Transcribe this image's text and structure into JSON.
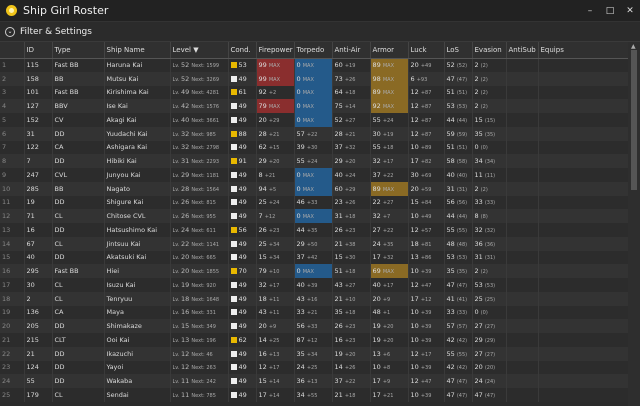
{
  "window": {
    "title": "Ship Girl Roster",
    "min": "–",
    "max": "□",
    "close": "✕"
  },
  "filter": {
    "label": "Filter & Settings"
  },
  "columns": [
    "ID",
    "Type",
    "Ship Name",
    "Level ▼",
    "Cond.",
    "Firepower",
    "Torpedo",
    "Anti-Air",
    "Armor",
    "Luck",
    "LoS",
    "Evasion",
    "AntiSub",
    "Equips"
  ],
  "rows": [
    {
      "n": "1",
      "id": "115",
      "type": "Fast BB",
      "name": "Haruna Kai",
      "lv": "52",
      "next": "1599",
      "cond": "53",
      "cw": false,
      "fp": "99",
      "fpm": "MAX",
      "fpc": "red",
      "tp": "0",
      "tpm": "MAX",
      "tpc": "blue",
      "aa": "60",
      "aam": "+19",
      "ar": "89",
      "arm": "MAX",
      "arc": "gold",
      "lk": "20",
      "lkm": "+49",
      "los": "52",
      "losm": "(52)",
      "ev": "2",
      "evm": "(2)"
    },
    {
      "n": "2",
      "id": "158",
      "type": "BB",
      "name": "Mutsu Kai",
      "lv": "52",
      "next": "3269",
      "cond": "49",
      "cw": true,
      "fp": "99",
      "fpm": "MAX",
      "fpc": "red",
      "tp": "0",
      "tpm": "MAX",
      "tpc": "blue",
      "aa": "73",
      "aam": "+26",
      "ar": "98",
      "arm": "MAX",
      "arc": "gold",
      "lk": "6",
      "lkm": "+93",
      "los": "47",
      "losm": "(47)",
      "ev": "2",
      "evm": "(2)"
    },
    {
      "n": "3",
      "id": "101",
      "type": "Fast BB",
      "name": "Kirishima Kai",
      "lv": "49",
      "next": "4281",
      "cond": "61",
      "cw": false,
      "fp": "92",
      "fpm": "+2",
      "fpc": "",
      "tp": "0",
      "tpm": "MAX",
      "tpc": "blue",
      "aa": "64",
      "aam": "+18",
      "ar": "89",
      "arm": "MAX",
      "arc": "gold",
      "lk": "12",
      "lkm": "+87",
      "los": "51",
      "losm": "(51)",
      "ev": "2",
      "evm": "(2)"
    },
    {
      "n": "4",
      "id": "127",
      "type": "BBV",
      "name": "Ise Kai",
      "lv": "42",
      "next": "1576",
      "cond": "49",
      "cw": true,
      "fp": "79",
      "fpm": "MAX",
      "fpc": "red",
      "tp": "0",
      "tpm": "MAX",
      "tpc": "blue",
      "aa": "75",
      "aam": "+14",
      "ar": "92",
      "arm": "MAX",
      "arc": "gold",
      "lk": "12",
      "lkm": "+87",
      "los": "53",
      "losm": "(53)",
      "ev": "2",
      "evm": "(2)"
    },
    {
      "n": "5",
      "id": "152",
      "type": "CV",
      "name": "Akagi Kai",
      "lv": "40",
      "next": "3661",
      "cond": "49",
      "cw": true,
      "fp": "20",
      "fpm": "+29",
      "fpc": "",
      "tp": "0",
      "tpm": "MAX",
      "tpc": "blue",
      "aa": "52",
      "aam": "+27",
      "ar": "55",
      "arm": "+24",
      "arc": "",
      "lk": "12",
      "lkm": "+87",
      "los": "44",
      "losm": "(44)",
      "ev": "15",
      "evm": "(15)"
    },
    {
      "n": "6",
      "id": "31",
      "type": "DD",
      "name": "Yuudachi Kai",
      "lv": "32",
      "next": "985",
      "cond": "88",
      "cw": false,
      "fp": "28",
      "fpm": "+21",
      "fpc": "",
      "tp": "57",
      "tpm": "+22",
      "tpc": "",
      "aa": "28",
      "aam": "+21",
      "ar": "30",
      "arm": "+19",
      "lk": "12",
      "lkm": "+87",
      "los": "59",
      "losm": "(59)",
      "ev": "35",
      "evm": "(35)"
    },
    {
      "n": "7",
      "id": "122",
      "type": "CA",
      "name": "Ashigara Kai",
      "lv": "32",
      "next": "2798",
      "cond": "49",
      "cw": true,
      "fp": "62",
      "fpm": "+15",
      "fpc": "",
      "tp": "39",
      "tpm": "+30",
      "tpc": "",
      "aa": "37",
      "aam": "+32",
      "ar": "55",
      "arm": "+18",
      "arc": "",
      "lk": "10",
      "lkm": "+89",
      "los": "51",
      "losm": "(51)",
      "ev": "0",
      "evm": "(0)"
    },
    {
      "n": "8",
      "id": "7",
      "type": "DD",
      "name": "Hibiki Kai",
      "lv": "31",
      "next": "2293",
      "cond": "91",
      "cw": false,
      "fp": "29",
      "fpm": "+20",
      "fpc": "",
      "tp": "55",
      "tpm": "+24",
      "tpc": "",
      "aa": "29",
      "aam": "+20",
      "ar": "32",
      "arm": "+17",
      "arc": "",
      "lk": "17",
      "lkm": "+82",
      "los": "58",
      "losm": "(58)",
      "ev": "34",
      "evm": "(34)"
    },
    {
      "n": "9",
      "id": "247",
      "type": "CVL",
      "name": "Junyou Kai",
      "lv": "29",
      "next": "1181",
      "cond": "49",
      "cw": true,
      "fp": "8",
      "fpm": "+21",
      "fpc": "",
      "tp": "0",
      "tpm": "MAX",
      "tpc": "blue",
      "aa": "40",
      "aam": "+24",
      "ar": "37",
      "arm": "+22",
      "arc": "",
      "lk": "30",
      "lkm": "+69",
      "los": "40",
      "losm": "(40)",
      "ev": "11",
      "evm": "(11)"
    },
    {
      "n": "10",
      "id": "285",
      "type": "BB",
      "name": "Nagato",
      "lv": "28",
      "next": "1564",
      "cond": "49",
      "cw": true,
      "fp": "94",
      "fpm": "+5",
      "fpc": "",
      "tp": "0",
      "tpm": "MAX",
      "tpc": "blue",
      "aa": "60",
      "aam": "+29",
      "ar": "89",
      "arm": "MAX",
      "arc": "gold",
      "lk": "20",
      "lkm": "+59",
      "los": "31",
      "losm": "(31)",
      "ev": "2",
      "evm": "(2)"
    },
    {
      "n": "11",
      "id": "19",
      "type": "DD",
      "name": "Shigure Kai",
      "lv": "26",
      "next": "815",
      "cond": "49",
      "cw": true,
      "fp": "25",
      "fpm": "+24",
      "fpc": "",
      "tp": "46",
      "tpm": "+33",
      "tpc": "",
      "aa": "23",
      "aam": "+26",
      "ar": "22",
      "arm": "+27",
      "arc": "",
      "lk": "15",
      "lkm": "+84",
      "los": "56",
      "losm": "(56)",
      "ev": "33",
      "evm": "(33)"
    },
    {
      "n": "12",
      "id": "71",
      "type": "CL",
      "name": "Chitose CVL",
      "lv": "26",
      "next": "955",
      "cond": "49",
      "cw": true,
      "fp": "7",
      "fpm": "+12",
      "fpc": "",
      "tp": "0",
      "tpm": "MAX",
      "tpc": "blue",
      "aa": "31",
      "aam": "+18",
      "ar": "32",
      "arm": "+7",
      "arc": "",
      "lk": "10",
      "lkm": "+49",
      "los": "44",
      "losm": "(44)",
      "ev": "8",
      "evm": "(8)"
    },
    {
      "n": "13",
      "id": "16",
      "type": "DD",
      "name": "Hatsushimo Kai",
      "lv": "24",
      "next": "611",
      "cond": "56",
      "cw": false,
      "fp": "26",
      "fpm": "+23",
      "fpc": "",
      "tp": "44",
      "tpm": "+35",
      "tpc": "",
      "aa": "26",
      "aam": "+23",
      "ar": "27",
      "arm": "+22",
      "arc": "",
      "lk": "12",
      "lkm": "+57",
      "los": "55",
      "losm": "(55)",
      "ev": "32",
      "evm": "(32)"
    },
    {
      "n": "14",
      "id": "67",
      "type": "CL",
      "name": "Jintsuu Kai",
      "lv": "22",
      "next": "1141",
      "cond": "49",
      "cw": true,
      "fp": "25",
      "fpm": "+34",
      "fpc": "",
      "tp": "29",
      "tpm": "+50",
      "tpc": "",
      "aa": "21",
      "aam": "+38",
      "ar": "24",
      "arm": "+35",
      "arc": "",
      "lk": "18",
      "lkm": "+81",
      "los": "48",
      "losm": "(48)",
      "ev": "36",
      "evm": "(36)"
    },
    {
      "n": "15",
      "id": "40",
      "type": "DD",
      "name": "Akatsuki Kai",
      "lv": "20",
      "next": "665",
      "cond": "49",
      "cw": true,
      "fp": "15",
      "fpm": "+34",
      "fpc": "",
      "tp": "37",
      "tpm": "+42",
      "tpc": "",
      "aa": "15",
      "aam": "+30",
      "ar": "17",
      "arm": "+32",
      "arc": "",
      "lk": "13",
      "lkm": "+86",
      "los": "53",
      "losm": "(53)",
      "ev": "31",
      "evm": "(31)"
    },
    {
      "n": "16",
      "id": "295",
      "type": "Fast BB",
      "name": "Hiei",
      "lv": "20",
      "next": "1855",
      "cond": "70",
      "cw": false,
      "fp": "79",
      "fpm": "+10",
      "fpc": "",
      "tp": "0",
      "tpm": "MAX",
      "tpc": "blue",
      "aa": "51",
      "aam": "+18",
      "ar": "69",
      "arm": "MAX",
      "arc": "gold",
      "lk": "10",
      "lkm": "+39",
      "los": "35",
      "losm": "(35)",
      "ev": "2",
      "evm": "(2)"
    },
    {
      "n": "17",
      "id": "30",
      "type": "CL",
      "name": "Isuzu Kai",
      "lv": "19",
      "next": "920",
      "cond": "49",
      "cw": true,
      "fp": "32",
      "fpm": "+17",
      "fpc": "",
      "tp": "40",
      "tpm": "+39",
      "tpc": "",
      "aa": "43",
      "aam": "+27",
      "ar": "40",
      "arm": "+17",
      "arc": "",
      "lk": "12",
      "lkm": "+47",
      "los": "47",
      "losm": "(47)",
      "ev": "53",
      "evm": "(53)"
    },
    {
      "n": "18",
      "id": "2",
      "type": "CL",
      "name": "Tenryuu",
      "lv": "18",
      "next": "1648",
      "cond": "49",
      "cw": true,
      "fp": "18",
      "fpm": "+11",
      "fpc": "",
      "tp": "43",
      "tpm": "+16",
      "tpc": "",
      "aa": "21",
      "aam": "+10",
      "ar": "20",
      "arm": "+9",
      "arc": "",
      "lk": "17",
      "lkm": "+12",
      "los": "41",
      "losm": "(41)",
      "ev": "25",
      "evm": "(25)"
    },
    {
      "n": "19",
      "id": "136",
      "type": "CA",
      "name": "Maya",
      "lv": "16",
      "next": "331",
      "cond": "49",
      "cw": true,
      "fp": "43",
      "fpm": "+11",
      "fpc": "",
      "tp": "33",
      "tpm": "+21",
      "tpc": "",
      "aa": "35",
      "aam": "+18",
      "ar": "48",
      "arm": "+1",
      "arc": "",
      "lk": "10",
      "lkm": "+39",
      "los": "33",
      "losm": "(33)",
      "ev": "0",
      "evm": "(0)"
    },
    {
      "n": "20",
      "id": "205",
      "type": "DD",
      "name": "Shimakaze",
      "lv": "15",
      "next": "349",
      "cond": "49",
      "cw": true,
      "fp": "20",
      "fpm": "+9",
      "fpc": "",
      "tp": "56",
      "tpm": "+33",
      "tpc": "",
      "aa": "26",
      "aam": "+23",
      "ar": "19",
      "arm": "+20",
      "arc": "",
      "lk": "10",
      "lkm": "+39",
      "los": "57",
      "losm": "(57)",
      "ev": "27",
      "evm": "(27)"
    },
    {
      "n": "21",
      "id": "215",
      "type": "CLT",
      "name": "Ooi Kai",
      "lv": "13",
      "next": "196",
      "cond": "62",
      "cw": false,
      "fp": "14",
      "fpm": "+25",
      "fpc": "",
      "tp": "87",
      "tpm": "+12",
      "tpc": "",
      "aa": "16",
      "aam": "+23",
      "ar": "19",
      "arm": "+20",
      "arc": "",
      "lk": "10",
      "lkm": "+39",
      "los": "42",
      "losm": "(42)",
      "ev": "29",
      "evm": "(29)"
    },
    {
      "n": "22",
      "id": "21",
      "type": "DD",
      "name": "Ikazuchi",
      "lv": "12",
      "next": "46",
      "cond": "49",
      "cw": true,
      "fp": "16",
      "fpm": "+13",
      "fpc": "",
      "tp": "35",
      "tpm": "+34",
      "tpc": "",
      "aa": "19",
      "aam": "+20",
      "ar": "13",
      "arm": "+6",
      "arc": "",
      "lk": "12",
      "lkm": "+17",
      "los": "55",
      "losm": "(55)",
      "ev": "27",
      "evm": "(27)"
    },
    {
      "n": "23",
      "id": "124",
      "type": "DD",
      "name": "Yayoi",
      "lv": "12",
      "next": "263",
      "cond": "49",
      "cw": true,
      "fp": "12",
      "fpm": "+17",
      "fpc": "",
      "tp": "24",
      "tpm": "+25",
      "tpc": "",
      "aa": "14",
      "aam": "+26",
      "ar": "10",
      "arm": "+8",
      "arc": "",
      "lk": "10",
      "lkm": "+39",
      "los": "42",
      "losm": "(42)",
      "ev": "20",
      "evm": "(20)"
    },
    {
      "n": "24",
      "id": "55",
      "type": "DD",
      "name": "Wakaba",
      "lv": "11",
      "next": "242",
      "cond": "49",
      "cw": true,
      "fp": "15",
      "fpm": "+14",
      "fpc": "",
      "tp": "36",
      "tpm": "+13",
      "tpc": "",
      "aa": "37",
      "aam": "+22",
      "ar": "17",
      "arm": "+9",
      "arc": "",
      "lk": "12",
      "lkm": "+47",
      "los": "47",
      "losm": "(47)",
      "ev": "24",
      "evm": "(24)"
    },
    {
      "n": "25",
      "id": "179",
      "type": "CL",
      "name": "Sendai",
      "lv": "11",
      "next": "785",
      "cond": "49",
      "cw": true,
      "fp": "17",
      "fpm": "+14",
      "fpc": "",
      "tp": "34",
      "tpm": "+55",
      "tpc": "",
      "aa": "21",
      "aam": "+18",
      "ar": "17",
      "arm": "+21",
      "arc": "",
      "lk": "10",
      "lkm": "+39",
      "los": "47",
      "losm": "(47)",
      "ev": "47",
      "evm": "(47)"
    }
  ],
  "labels": {
    "lv_prefix": "Lv.",
    "next_prefix": "Next:"
  }
}
